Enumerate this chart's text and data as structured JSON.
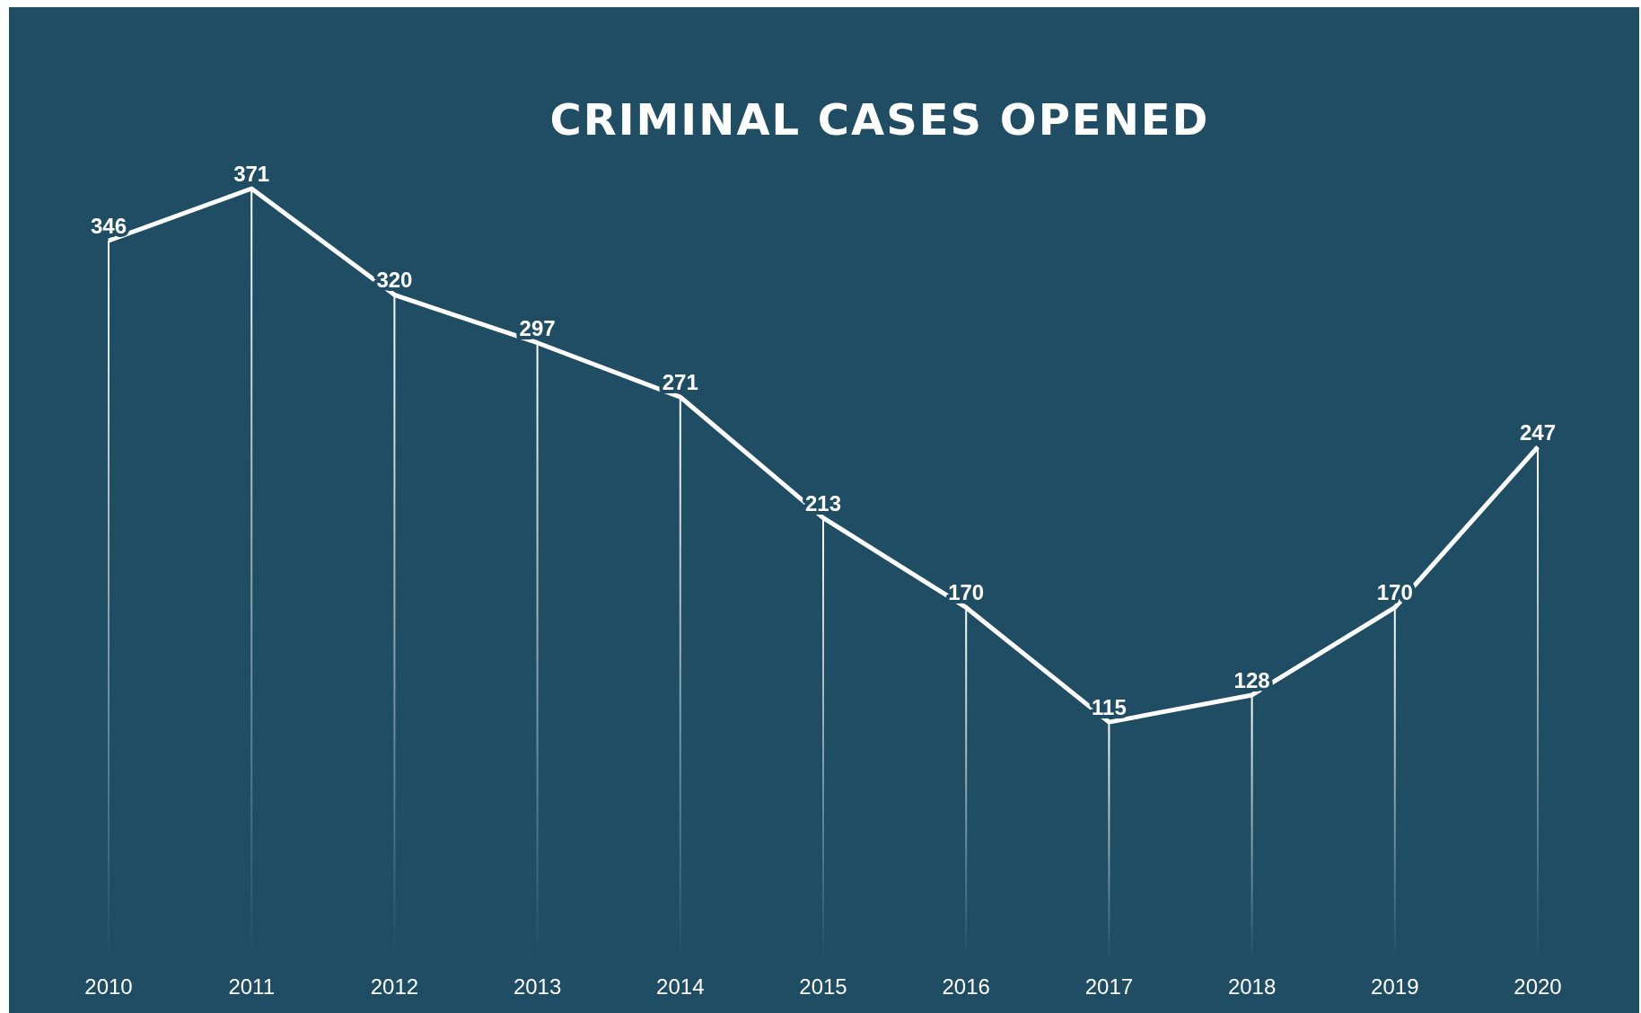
{
  "chart_data": {
    "type": "line",
    "title": "CRIMINAL CASES OPENED",
    "categories": [
      "2010",
      "2011",
      "2012",
      "2013",
      "2014",
      "2015",
      "2016",
      "2017",
      "2018",
      "2019",
      "2020"
    ],
    "series": [
      {
        "type": "bar",
        "color": "#ffffff",
        "values": [
          346,
          371,
          320,
          297,
          271,
          213,
          170,
          115,
          128,
          170,
          247
        ]
      },
      {
        "color": "#ffffff",
        "value_labels": [
          "346",
          "371",
          "320",
          "297",
          "271",
          "213",
          "170",
          "115",
          "128",
          "170",
          "247"
        ],
        "values": [
          346,
          371,
          320,
          297,
          271,
          213,
          170,
          115,
          128,
          170,
          247
        ]
      }
    ],
    "tick_labels": "x"
  }
}
